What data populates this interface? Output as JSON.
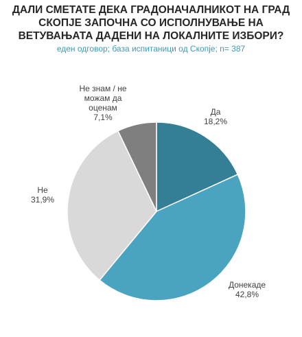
{
  "chart_data": {
    "type": "pie",
    "title": "ДАЛИ СМЕТАТЕ ДЕКА ГРАДОНАЧАЛНИКОТ НА ГРАД СКОПЈЕ ЗАПОЧНА СО ИСПОЛНУВАЊЕ НА ВЕТУВАЊАТА ДАДЕНИ НА ЛОКАЛНИТЕ ИЗБОРИ?",
    "subtitle": "еден одговор; база испитаници од Скопје; n= 387",
    "categories": [
      "Да",
      "Донекаде",
      "Не",
      "Не знам / не можам да оценам"
    ],
    "values": [
      18.2,
      42.8,
      31.9,
      7.1
    ],
    "value_labels": [
      "18,2%",
      "42,8%",
      "31,9%",
      "7,1%"
    ],
    "colors": [
      "#347f96",
      "#4aa3bf",
      "#d9d9d9",
      "#7f7f7f"
    ]
  }
}
